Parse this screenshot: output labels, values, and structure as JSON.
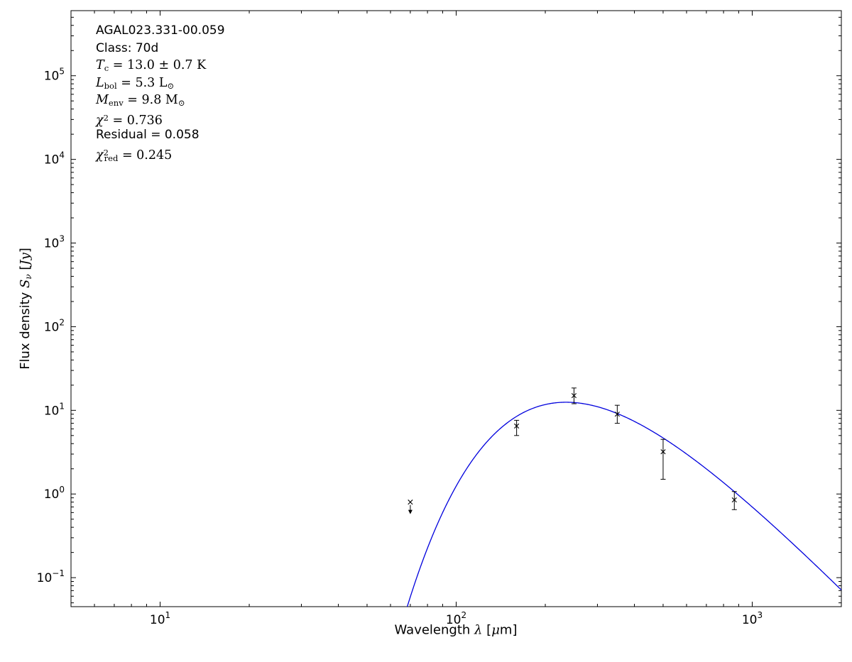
{
  "chart_data": {
    "type": "scatter",
    "title": "",
    "xlabel": "Wavelength λ [μm]",
    "ylabel": "Flux density Sν [Jy]",
    "xscale": "log",
    "yscale": "log",
    "xlim": [
      5,
      2000
    ],
    "ylim": [
      0.045,
      600000
    ],
    "x_tick_exponents": [
      1,
      2,
      3
    ],
    "y_tick_exponents": [
      -1,
      0,
      1,
      2,
      3,
      4,
      5
    ],
    "grid": false,
    "frame_color": "#000000",
    "xlabel_segments": [
      {
        "t": "Wavelength ",
        "s": "plain"
      },
      {
        "t": "λ",
        "s": "it"
      },
      {
        "t": " [",
        "s": "plain"
      },
      {
        "t": "μ",
        "s": "it"
      },
      {
        "t": "m]",
        "s": "plain"
      }
    ],
    "ylabel_segments": [
      {
        "t": "Flux density ",
        "s": "plain"
      },
      {
        "t": "S",
        "s": "it"
      },
      {
        "t": "ν",
        "s": "subit"
      },
      {
        "t": " [",
        "s": "plain"
      },
      {
        "t": "Jy",
        "s": "it"
      },
      {
        "t": "]",
        "s": "plain"
      }
    ],
    "points": [
      {
        "wavelength_um": 70,
        "flux_jy": 0.8,
        "err_lo": 0.0,
        "err_hi": 0.0,
        "upper_limit": true
      },
      {
        "wavelength_um": 160,
        "flux_jy": 6.5,
        "err_lo": 1.5,
        "err_hi": 1.1,
        "upper_limit": false
      },
      {
        "wavelength_um": 250,
        "flux_jy": 15.0,
        "err_lo": 3.0,
        "err_hi": 3.5,
        "upper_limit": false
      },
      {
        "wavelength_um": 350,
        "flux_jy": 9.0,
        "err_lo": 2.0,
        "err_hi": 2.5,
        "upper_limit": false
      },
      {
        "wavelength_um": 500,
        "flux_jy": 3.2,
        "err_lo": 1.7,
        "err_hi": 1.3,
        "upper_limit": false
      },
      {
        "wavelength_um": 870,
        "flux_jy": 0.85,
        "err_lo": 0.2,
        "err_hi": 0.22,
        "upper_limit": false
      }
    ],
    "fit_curve": {
      "model": "modified-blackbody",
      "T_K": 13.0,
      "beta": 1.75,
      "peak_flux_jy": 12.5,
      "lambda_range_um": [
        58,
        2000
      ],
      "color": "#0000dd"
    },
    "fit_params": {
      "source": "AGAL023.331-00.059",
      "class": "70d",
      "T_c": "13.0 ± 0.7 K",
      "L_bol": "5.3 L⊙",
      "M_env": "9.8 M⊙",
      "chi2": 0.736,
      "residual": 0.058,
      "chi2_red": 0.245
    },
    "annotation": {
      "lines": [
        {
          "font": "sans",
          "segments": [
            {
              "t": "AGAL023.331-00.059",
              "s": "plain"
            }
          ]
        },
        {
          "font": "sans",
          "segments": [
            {
              "t": "Class: 70d",
              "s": "plain"
            }
          ]
        },
        {
          "font": "math",
          "segments": [
            {
              "t": "T",
              "s": "it"
            },
            {
              "t": "c",
              "s": "sub"
            },
            {
              "t": " = 13.0 ± 0.7 K",
              "s": "rm"
            }
          ]
        },
        {
          "font": "math",
          "segments": [
            {
              "t": "L",
              "s": "it"
            },
            {
              "t": "bol",
              "s": "sub"
            },
            {
              "t": " = 5.3 L",
              "s": "rm"
            },
            {
              "t": "⊙",
              "s": "sub"
            }
          ]
        },
        {
          "font": "math",
          "segments": [
            {
              "t": "M",
              "s": "it"
            },
            {
              "t": "env",
              "s": "sub"
            },
            {
              "t": " = 9.8 M",
              "s": "rm"
            },
            {
              "t": "⊙",
              "s": "sub"
            }
          ]
        },
        {
          "font": "math",
          "segments": [
            {
              "t": "χ",
              "s": "it"
            },
            {
              "t": "2",
              "s": "sup"
            },
            {
              "t": " = 0.736",
              "s": "rm"
            }
          ]
        },
        {
          "font": "sans",
          "segments": [
            {
              "t": "Residual = 0.058",
              "s": "plain"
            }
          ]
        },
        {
          "font": "math",
          "segments": [
            {
              "t": "χ",
              "s": "it"
            },
            {
              "t": "2",
              "s": "sup"
            },
            {
              "t": "red",
              "s": "subneg"
            },
            {
              "t": " = 0.245",
              "s": "rm"
            }
          ]
        }
      ]
    }
  }
}
